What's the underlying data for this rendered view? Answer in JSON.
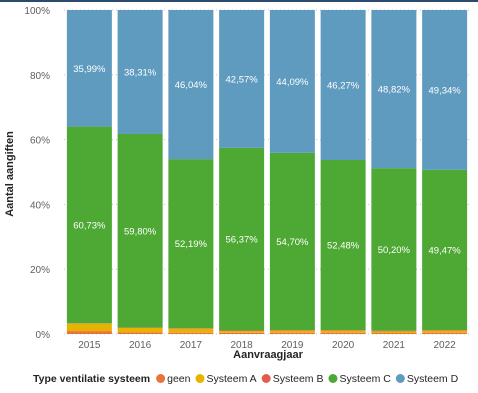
{
  "chart_data": {
    "type": "bar",
    "stacked": true,
    "normalized": true,
    "categories": [
      "2015",
      "2016",
      "2017",
      "2018",
      "2019",
      "2020",
      "2021",
      "2022"
    ],
    "series": [
      {
        "name": "geen",
        "color": "#e8743b",
        "values": [
          0.9,
          0.5,
          0.4,
          0.4,
          0.4,
          0.4,
          0.3,
          0.4
        ],
        "labels": [
          "",
          "",
          "",
          "",
          "",
          "",
          "",
          ""
        ]
      },
      {
        "name": "Systeem A",
        "color": "#e6b400",
        "values": [
          2.3,
          1.4,
          1.2,
          0.5,
          0.6,
          0.6,
          0.5,
          0.6
        ],
        "labels": [
          "",
          "",
          "",
          "",
          "",
          "",
          "",
          ""
        ]
      },
      {
        "name": "Systeem B",
        "color": "#e35d4f",
        "values": [
          0.1,
          0.1,
          0.2,
          0.2,
          0.2,
          0.2,
          0.2,
          0.2
        ],
        "labels": [
          "",
          "",
          "",
          "",
          "",
          "",
          "",
          ""
        ]
      },
      {
        "name": "Systeem C",
        "color": "#4ea834",
        "values": [
          60.73,
          59.8,
          52.19,
          56.37,
          54.7,
          52.48,
          50.2,
          49.47
        ],
        "labels": [
          "60,73%",
          "59,80%",
          "52,19%",
          "56,37%",
          "54,70%",
          "52,48%",
          "50,20%",
          "49,47%"
        ]
      },
      {
        "name": "Systeem D",
        "color": "#5f9bbf",
        "values": [
          35.99,
          38.31,
          46.04,
          42.57,
          44.09,
          46.27,
          48.82,
          49.34
        ],
        "labels": [
          "35,99%",
          "38,31%",
          "46,04%",
          "42,57%",
          "44,09%",
          "46,27%",
          "48,82%",
          "49,34%"
        ]
      }
    ],
    "ylim": [
      0,
      100
    ],
    "yticks": [
      0,
      20,
      40,
      60,
      80,
      100
    ],
    "ytick_labels": [
      "0%",
      "20%",
      "40%",
      "60%",
      "80%",
      "100%"
    ],
    "xlabel": "Aanvraagjaar",
    "ylabel": "Aantal aangiften",
    "legend": {
      "title": "Type ventilatie systeem",
      "position": "bottom"
    },
    "grid": "horizontal dotted"
  }
}
